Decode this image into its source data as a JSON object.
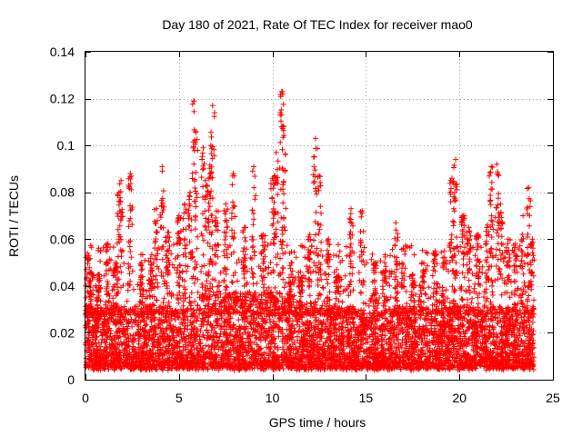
{
  "chart_data": {
    "type": "scatter",
    "title": "Day 180 of 2021, Rate Of TEC Index for receiver mao0",
    "xlabel": "GPS time / hours",
    "ylabel": "ROTI / TECUs",
    "xlim": [
      0,
      25
    ],
    "ylim": [
      0,
      0.14
    ],
    "x_ticks": [
      "0",
      "5",
      "10",
      "15",
      "20",
      "25"
    ],
    "y_ticks": [
      "0",
      "0.02",
      "0.04",
      "0.06",
      "0.08",
      "0.1",
      "0.12",
      "0.14"
    ],
    "x_tick_values": [
      0,
      5,
      10,
      15,
      20,
      25
    ],
    "y_tick_values": [
      0,
      0.02,
      0.04,
      0.06,
      0.08,
      0.1,
      0.12,
      0.14
    ],
    "grid": true,
    "marker": "+",
    "color": "#ff0000",
    "series": [
      {
        "name": "ROTI",
        "x_range": [
          0,
          24
        ],
        "baseline_band": [
          0.004,
          0.03
        ],
        "spikes": [
          [
            0.1,
            0.054
          ],
          [
            0.3,
            0.046
          ],
          [
            0.7,
            0.045
          ],
          [
            1.2,
            0.058
          ],
          [
            1.6,
            0.05
          ],
          [
            1.8,
            0.08
          ],
          [
            1.9,
            0.085
          ],
          [
            2.4,
            0.088
          ],
          [
            3.0,
            0.05
          ],
          [
            3.5,
            0.05
          ],
          [
            3.8,
            0.073
          ],
          [
            4.1,
            0.091
          ],
          [
            4.4,
            0.063
          ],
          [
            5.0,
            0.07
          ],
          [
            5.3,
            0.075
          ],
          [
            5.6,
            0.08
          ],
          [
            5.8,
            0.119
          ],
          [
            5.9,
            0.106
          ],
          [
            6.3,
            0.099
          ],
          [
            6.5,
            0.083
          ],
          [
            6.7,
            0.1
          ],
          [
            6.8,
            0.117
          ],
          [
            7.0,
            0.072
          ],
          [
            7.5,
            0.075
          ],
          [
            7.9,
            0.088
          ],
          [
            8.5,
            0.065
          ],
          [
            9.0,
            0.091
          ],
          [
            9.5,
            0.062
          ],
          [
            10.0,
            0.086
          ],
          [
            10.2,
            0.097
          ],
          [
            10.5,
            0.123
          ],
          [
            10.6,
            0.108
          ],
          [
            11.0,
            0.05
          ],
          [
            11.5,
            0.046
          ],
          [
            12.0,
            0.062
          ],
          [
            12.3,
            0.103
          ],
          [
            12.5,
            0.087
          ],
          [
            13.0,
            0.06
          ],
          [
            13.5,
            0.044
          ],
          [
            14.2,
            0.073
          ],
          [
            14.8,
            0.072
          ],
          [
            15.5,
            0.05
          ],
          [
            16.0,
            0.05
          ],
          [
            16.6,
            0.067
          ],
          [
            17.0,
            0.056
          ],
          [
            17.5,
            0.045
          ],
          [
            18.0,
            0.05
          ],
          [
            18.7,
            0.055
          ],
          [
            19.2,
            0.055
          ],
          [
            19.6,
            0.086
          ],
          [
            19.8,
            0.094
          ],
          [
            20.2,
            0.07
          ],
          [
            20.5,
            0.065
          ],
          [
            21.0,
            0.062
          ],
          [
            21.5,
            0.066
          ],
          [
            21.7,
            0.091
          ],
          [
            22.0,
            0.092
          ],
          [
            22.2,
            0.075
          ],
          [
            22.6,
            0.06
          ],
          [
            23.0,
            0.058
          ],
          [
            23.4,
            0.07
          ],
          [
            23.7,
            0.082
          ],
          [
            23.9,
            0.06
          ]
        ]
      }
    ]
  }
}
